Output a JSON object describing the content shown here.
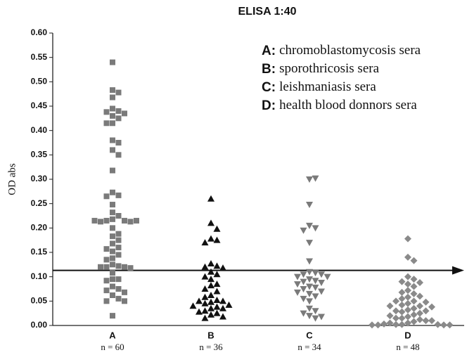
{
  "chart_data": {
    "type": "strip",
    "title": "ELISA 1:40",
    "y_label": "OD abs",
    "categories": [
      "A",
      "B",
      "C",
      "D"
    ],
    "n_labels": [
      "n = 60",
      "n = 36",
      "n = 34",
      "n = 48"
    ],
    "legend_keys": [
      "A:",
      "B:",
      "C:",
      "D:"
    ],
    "series": [
      {
        "name": "chromoblastomycosis sera",
        "color": "#7a7a7a",
        "marker": "square",
        "values": [
          0.54,
          0.483,
          0.478,
          0.468,
          0.445,
          0.44,
          0.438,
          0.435,
          0.43,
          0.425,
          0.415,
          0.415,
          0.38,
          0.375,
          0.36,
          0.35,
          0.318,
          0.273,
          0.267,
          0.265,
          0.248,
          0.232,
          0.225,
          0.218,
          0.215,
          0.215,
          0.213,
          0.213,
          0.215,
          0.215,
          0.2,
          0.188,
          0.183,
          0.175,
          0.168,
          0.16,
          0.157,
          0.152,
          0.145,
          0.138,
          0.135,
          0.125,
          0.122,
          0.12,
          0.12,
          0.12,
          0.118,
          0.108,
          0.095,
          0.095,
          0.092,
          0.08,
          0.075,
          0.072,
          0.068,
          0.062,
          0.055,
          0.05,
          0.05,
          0.02
        ]
      },
      {
        "name": "sporothricosis sera",
        "color": "#111111",
        "marker": "triangle-up",
        "values": [
          0.26,
          0.21,
          0.198,
          0.178,
          0.175,
          0.17,
          0.127,
          0.122,
          0.12,
          0.118,
          0.11,
          0.105,
          0.1,
          0.095,
          0.085,
          0.082,
          0.075,
          0.07,
          0.062,
          0.058,
          0.052,
          0.05,
          0.05,
          0.048,
          0.045,
          0.042,
          0.04,
          0.038,
          0.035,
          0.035,
          0.03,
          0.028,
          0.025,
          0.022,
          0.018,
          0.015
        ]
      },
      {
        "name": "leishmaniasis sera",
        "color": "#7a7a7a",
        "marker": "triangle-down",
        "values": [
          0.3,
          0.302,
          0.248,
          0.205,
          0.2,
          0.195,
          0.17,
          0.132,
          0.11,
          0.108,
          0.105,
          0.105,
          0.1,
          0.1,
          0.095,
          0.092,
          0.09,
          0.088,
          0.085,
          0.08,
          0.078,
          0.075,
          0.07,
          0.068,
          0.065,
          0.06,
          0.055,
          0.05,
          0.035,
          0.03,
          0.025,
          0.02,
          0.018,
          0.015
        ]
      },
      {
        "name": "health blood donnors sera",
        "color": "#8a8a8a",
        "marker": "diamond",
        "values": [
          0.178,
          0.14,
          0.133,
          0.1,
          0.095,
          0.09,
          0.088,
          0.085,
          0.08,
          0.072,
          0.068,
          0.065,
          0.06,
          0.058,
          0.055,
          0.05,
          0.05,
          0.048,
          0.045,
          0.042,
          0.04,
          0.04,
          0.038,
          0.035,
          0.032,
          0.03,
          0.03,
          0.028,
          0.025,
          0.022,
          0.02,
          0.018,
          0.015,
          0.015,
          0.012,
          0.01,
          0.01,
          0.008,
          0.005,
          0.005,
          0.003,
          0.002,
          0.002,
          0.002,
          0.001,
          0.001,
          0.001,
          0.001
        ]
      }
    ],
    "threshold": 0.113,
    "ylim": [
      0,
      0.6
    ],
    "yticks": [
      {
        "value": 0,
        "label": "0.00"
      },
      {
        "value": 0.05,
        "label": "0.05"
      },
      {
        "value": 0.1,
        "label": "0.10"
      },
      {
        "value": 0.15,
        "label": "0.15"
      },
      {
        "value": 0.2,
        "label": "0.20"
      },
      {
        "value": 0.25,
        "label": "0.25"
      },
      {
        "value": 0.3,
        "label": "0.30"
      },
      {
        "value": 0.35,
        "label": "0.35"
      },
      {
        "value": 0.4,
        "label": "0.40"
      },
      {
        "value": 0.45,
        "label": "0.45"
      },
      {
        "value": 0.5,
        "label": "0.50"
      },
      {
        "value": 0.55,
        "label": "0.55"
      },
      {
        "value": 0.6,
        "label": "0.60"
      }
    ]
  }
}
